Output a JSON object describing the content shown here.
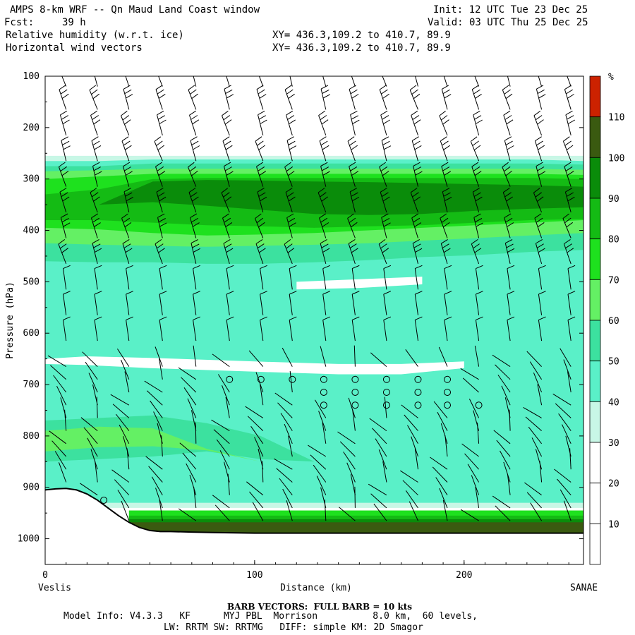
{
  "header": {
    "title": "AMPS 8-km WRF -- Qn Maud Land Coast window",
    "init": "Init: 12 UTC Tue 23 Dec 25",
    "fcst_label": "Fcst:",
    "fcst_value": "39 h",
    "valid": "Valid: 03 UTC Thu 25 Dec 25",
    "field1": "Relative humidity (w.r.t. ice)",
    "field2": "Horizontal wind vectors",
    "xy1": "XY= 436.3,109.2 to 410.7, 89.9",
    "xy2": "XY= 436.3,109.2 to 410.7, 89.9"
  },
  "footer": {
    "barb_note": "BARB VECTORS:  FULL BARB = 10 kts",
    "model_line1": "Model Info: V4.3.3   KF      MYJ PBL  Morrison          8.0 km,  60 levels,",
    "model_line2": "LW: RRTM SW: RRTMG   DIFF: simple KM: 2D Smagor"
  },
  "chart_data": {
    "type": "heatmap",
    "title": "",
    "xlabel": "Distance (km)",
    "ylabel": "Pressure (hPa)",
    "xlim": [
      0,
      257
    ],
    "ylim": [
      1050,
      100
    ],
    "x_ticks": [
      "0",
      "100",
      "200"
    ],
    "y_ticks": [
      "100",
      "200",
      "300",
      "400",
      "500",
      "600",
      "700",
      "800",
      "900",
      "1000"
    ],
    "x_end_labels": [
      "Veslis",
      "SANAE"
    ],
    "colorbar": {
      "unit": "%",
      "levels": [
        "10",
        "20",
        "30",
        "40",
        "50",
        "60",
        "70",
        "80",
        "90",
        "100",
        "110"
      ],
      "colors": [
        "#ffffff",
        "#ffffff",
        "#ffffff",
        "#c8f7e6",
        "#5af0c8",
        "#3ce19f",
        "#64f064",
        "#1ee11e",
        "#14bb14",
        "#0a8c0a",
        "#3a5a10",
        "#cc2200"
      ]
    },
    "bands": [
      {
        "level": 3,
        "top": [
          255,
          255,
          255,
          255,
          255,
          255,
          255,
          255,
          255,
          255,
          255
        ],
        "bottom": [
          940,
          940,
          940,
          940,
          940,
          940,
          940,
          940,
          940,
          940,
          940
        ]
      },
      {
        "level": 4,
        "top": [
          265,
          265,
          262,
          262,
          262,
          262,
          262,
          262,
          262,
          262,
          265
        ],
        "bottom": [
          930,
          930,
          930,
          930,
          930,
          930,
          930,
          930,
          930,
          930,
          930
        ]
      },
      {
        "level": 5,
        "top": [
          275,
          275,
          270,
          270,
          270,
          270,
          270,
          270,
          270,
          270,
          272
        ],
        "bottom": [
          460,
          462,
          462,
          465,
          465,
          462,
          458,
          452,
          448,
          442,
          438
        ]
      },
      {
        "level": 6,
        "top": [
          285,
          283,
          280,
          280,
          280,
          280,
          280,
          280,
          280,
          280,
          282
        ],
        "bottom": [
          425,
          428,
          430,
          432,
          430,
          428,
          425,
          420,
          415,
          410,
          405
        ]
      },
      {
        "level": 7,
        "top": [
          300,
          295,
          290,
          290,
          290,
          290,
          290,
          290,
          290,
          290,
          292
        ],
        "bottom": [
          395,
          398,
          405,
          410,
          408,
          405,
          400,
          395,
          390,
          385,
          380
        ]
      },
      {
        "level": 8,
        "top": [
          330,
          320,
          300,
          298,
          298,
          298,
          298,
          298,
          298,
          298,
          300
        ],
        "bottom": [
          380,
          380,
          385,
          390,
          392,
          395,
          392,
          390,
          385,
          380,
          378
        ]
      },
      {
        "level": 9,
        "top": [
          380,
          350,
          305,
          302,
          303,
          305,
          306,
          308,
          310,
          312,
          315
        ],
        "bottom": [
          380,
          350,
          345,
          352,
          360,
          368,
          370,
          368,
          362,
          358,
          355
        ]
      },
      {
        "level": 4,
        "top": [
          475,
          478,
          480,
          480,
          478,
          475,
          472,
          468,
          465,
          462,
          460
        ],
        "bottom": [
          610,
          612,
          618,
          622,
          625,
          628,
          630,
          632,
          635,
          638,
          640
        ]
      },
      {
        "level": 5,
        "top": [
          770,
          765,
          760,
          775,
          800,
          850,
          850,
          850,
          850,
          850,
          850
        ],
        "bottom": [
          850,
          845,
          840,
          830,
          845,
          850,
          850,
          850,
          850,
          850,
          850
        ]
      },
      {
        "level": 6,
        "top": [
          790,
          782,
          785,
          825,
          850,
          850,
          850,
          850,
          850,
          850,
          850
        ],
        "bottom": [
          830,
          822,
          820,
          828,
          850,
          850,
          850,
          850,
          850,
          850,
          850
        ]
      }
    ],
    "clear_regions": [
      {
        "desc": "dry lens",
        "top": [
          650,
          645,
          648,
          655,
          660,
          660,
          655
        ],
        "bottom": [
          660,
          662,
          668,
          675,
          680,
          680,
          668
        ],
        "x": [
          0,
          20,
          50,
          100,
          140,
          170,
          200
        ]
      },
      {
        "desc": "dry pocket",
        "top": [
          500,
          495,
          490
        ],
        "bottom": [
          515,
          512,
          505
        ],
        "x": [
          120,
          150,
          180
        ]
      }
    ],
    "surface_bands": [
      {
        "level": 7,
        "top": 945,
        "bottom": 990
      },
      {
        "level": 8,
        "top": 955,
        "bottom": 990
      },
      {
        "level": 9,
        "top": 962,
        "bottom": 990
      },
      {
        "level": 10,
        "top": 968,
        "bottom": 988
      }
    ],
    "terrain": {
      "x": [
        0,
        5,
        10,
        15,
        20,
        25,
        30,
        35,
        40,
        45,
        50,
        55,
        60,
        70,
        80,
        100,
        150,
        200,
        257
      ],
      "p": [
        905,
        903,
        902,
        905,
        913,
        925,
        940,
        955,
        968,
        978,
        984,
        986,
        986,
        987,
        988,
        989,
        989,
        989,
        989
      ]
    },
    "barbs": {
      "columns_km": [
        10,
        25,
        40,
        56,
        72,
        88,
        104,
        118,
        134,
        148,
        163,
        178,
        192,
        207,
        222,
        237,
        251
      ],
      "pressure_levels": [
        120,
        165,
        215,
        265,
        315,
        365,
        415,
        465,
        515,
        565,
        615,
        665,
        690,
        715,
        740,
        765,
        790,
        815,
        840,
        865,
        890,
        915,
        940,
        965
      ]
    },
    "calm_points": [
      {
        "x": 88,
        "p": 690
      },
      {
        "x": 103,
        "p": 690
      },
      {
        "x": 118,
        "p": 690
      },
      {
        "x": 133,
        "p": 690
      },
      {
        "x": 133,
        "p": 715
      },
      {
        "x": 133,
        "p": 740
      },
      {
        "x": 148,
        "p": 690
      },
      {
        "x": 148,
        "p": 715
      },
      {
        "x": 148,
        "p": 740
      },
      {
        "x": 163,
        "p": 690
      },
      {
        "x": 163,
        "p": 715
      },
      {
        "x": 163,
        "p": 740
      },
      {
        "x": 178,
        "p": 690
      },
      {
        "x": 178,
        "p": 715
      },
      {
        "x": 178,
        "p": 740
      },
      {
        "x": 192,
        "p": 690
      },
      {
        "x": 192,
        "p": 715
      },
      {
        "x": 192,
        "p": 740
      },
      {
        "x": 207,
        "p": 740
      },
      {
        "x": 28,
        "p": 925
      }
    ]
  }
}
